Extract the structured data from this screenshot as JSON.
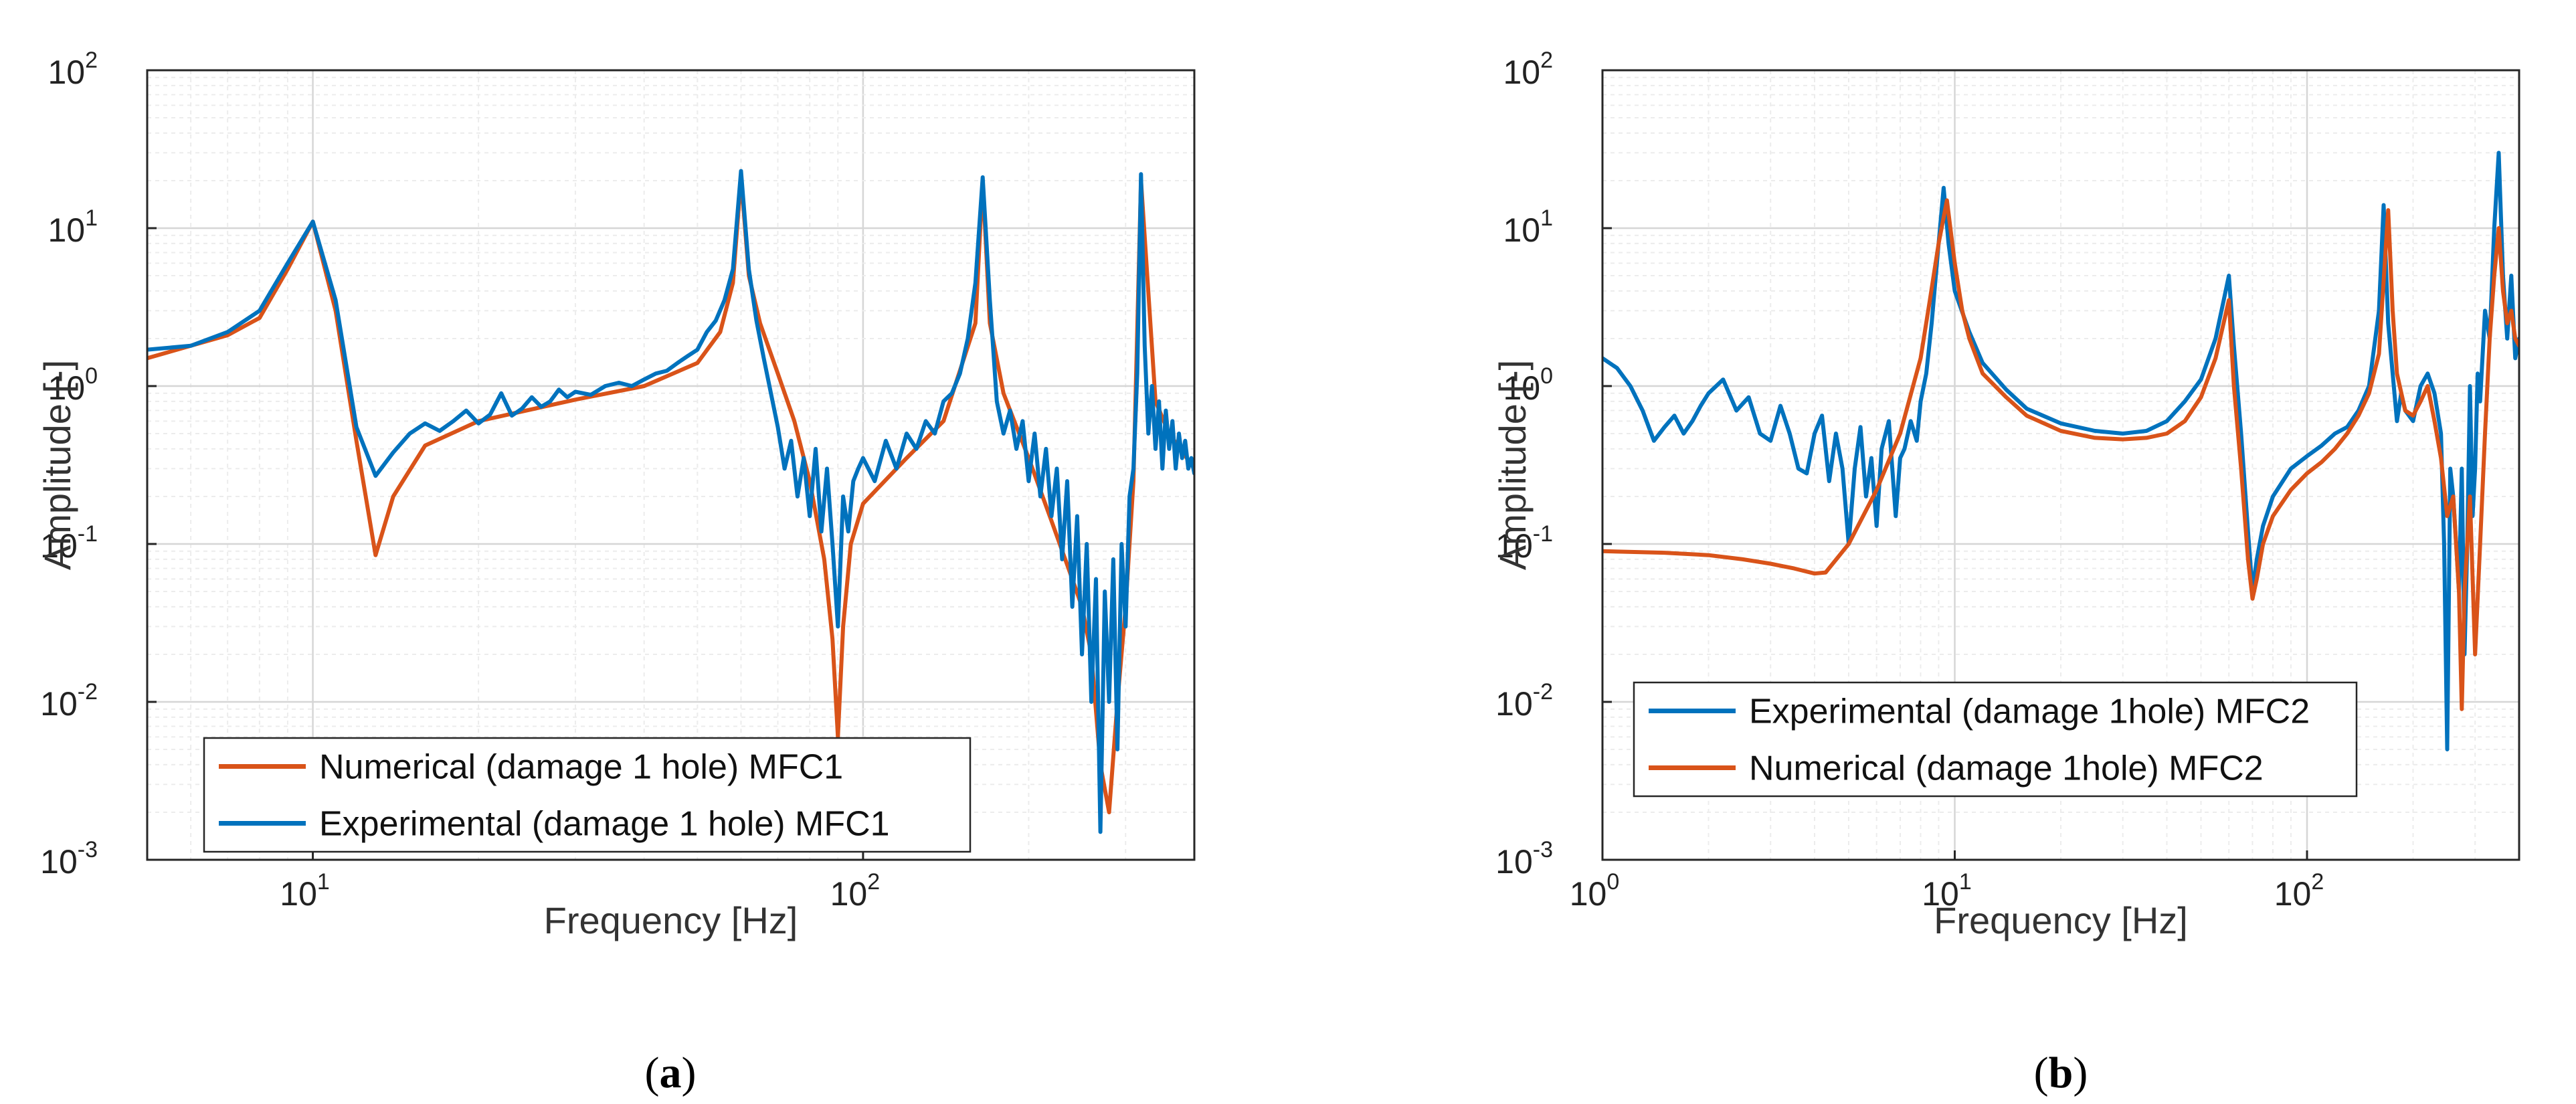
{
  "colors": {
    "numerical": "#d95319",
    "experimental": "#0072bd",
    "grid": "#d6d6d6",
    "grid_minor": "#ececec",
    "axis": "#262626"
  },
  "chart_data": [
    {
      "type": "line",
      "panel_label": "a",
      "xscale": "log",
      "yscale": "log",
      "xlim": [
        5,
        400
      ],
      "ylim": [
        0.001,
        100
      ],
      "xlabel": "Frequency [Hz]",
      "ylabel": "Amplitude [-]",
      "xticks": [
        {
          "base": "10",
          "exp": "1",
          "value": 10
        },
        {
          "base": "10",
          "exp": "2",
          "value": 100
        }
      ],
      "yticks": [
        {
          "base": "10",
          "exp": "-3",
          "value": 0.001
        },
        {
          "base": "10",
          "exp": "-2",
          "value": 0.01
        },
        {
          "base": "10",
          "exp": "-1",
          "value": 0.1
        },
        {
          "base": "10",
          "exp": "0",
          "value": 1
        },
        {
          "base": "10",
          "exp": "1",
          "value": 10
        },
        {
          "base": "10",
          "exp": "2",
          "value": 100
        }
      ],
      "grid": true,
      "legend_position": "bottom-left",
      "series": [
        {
          "name": "Numerical (damage 1 hole) MFC1",
          "color_key": "numerical",
          "x": [
            5,
            6,
            7,
            8,
            9,
            10,
            11,
            12,
            13,
            14,
            16,
            20,
            30,
            40,
            50,
            55,
            58,
            60,
            62,
            65,
            70,
            75,
            80,
            85,
            88,
            90,
            92,
            95,
            100,
            120,
            140,
            160,
            165,
            170,
            180,
            200,
            220,
            240,
            250,
            260,
            270,
            280,
            290,
            300,
            310,
            320,
            340,
            360,
            400
          ],
          "y": [
            1.5,
            1.8,
            2.1,
            2.7,
            5.5,
            11,
            3,
            0.45,
            0.085,
            0.2,
            0.42,
            0.6,
            0.82,
            1.0,
            1.4,
            2.2,
            4.5,
            21,
            5,
            2.5,
            1.2,
            0.6,
            0.25,
            0.08,
            0.025,
            0.006,
            0.03,
            0.1,
            0.18,
            0.35,
            0.6,
            2.5,
            20,
            2.5,
            0.9,
            0.35,
            0.14,
            0.06,
            0.04,
            0.02,
            0.004,
            0.002,
            0.01,
            0.04,
            0.25,
            20,
            0.8,
            0.5,
            0.3
          ]
        },
        {
          "name": "Experimental (damage 1 hole) MFC1",
          "color_key": "experimental",
          "x": [
            5,
            6,
            7,
            8,
            9,
            10,
            11,
            12,
            13,
            14,
            15,
            16,
            17,
            18,
            19,
            20,
            21,
            22,
            23,
            24,
            25,
            26,
            27,
            28,
            29,
            30,
            32,
            34,
            36,
            38,
            40,
            42,
            44,
            46,
            48,
            50,
            52,
            54,
            56,
            58,
            60,
            62,
            64,
            66,
            68,
            70,
            72,
            74,
            76,
            78,
            80,
            82,
            84,
            86,
            88,
            90,
            92,
            94,
            96,
            98,
            100,
            105,
            110,
            115,
            120,
            125,
            130,
            135,
            140,
            145,
            150,
            155,
            160,
            165,
            170,
            175,
            180,
            185,
            190,
            195,
            200,
            205,
            210,
            215,
            220,
            225,
            230,
            235,
            240,
            245,
            250,
            255,
            260,
            265,
            270,
            275,
            280,
            285,
            290,
            295,
            300,
            305,
            310,
            315,
            320,
            325,
            330,
            335,
            340,
            345,
            350,
            355,
            360,
            365,
            370,
            375,
            380,
            385,
            390,
            395,
            400
          ],
          "y": [
            1.7,
            1.8,
            2.2,
            3,
            6,
            11,
            3.5,
            0.55,
            0.27,
            0.38,
            0.5,
            0.58,
            0.52,
            0.6,
            0.7,
            0.58,
            0.66,
            0.9,
            0.65,
            0.72,
            0.85,
            0.74,
            0.8,
            0.95,
            0.85,
            0.92,
            0.88,
            1.0,
            1.05,
            1.0,
            1.1,
            1.2,
            1.25,
            1.4,
            1.55,
            1.7,
            2.2,
            2.6,
            3.5,
            5.5,
            23,
            5.5,
            2.6,
            1.5,
            0.9,
            0.55,
            0.3,
            0.45,
            0.2,
            0.35,
            0.15,
            0.4,
            0.12,
            0.3,
            0.1,
            0.03,
            0.2,
            0.12,
            0.25,
            0.3,
            0.35,
            0.25,
            0.45,
            0.3,
            0.5,
            0.4,
            0.6,
            0.5,
            0.8,
            0.9,
            1.2,
            2.0,
            4.5,
            21,
            3.5,
            0.8,
            0.5,
            0.7,
            0.4,
            0.6,
            0.25,
            0.5,
            0.2,
            0.4,
            0.15,
            0.3,
            0.08,
            0.25,
            0.04,
            0.15,
            0.02,
            0.1,
            0.01,
            0.06,
            0.0015,
            0.05,
            0.01,
            0.08,
            0.005,
            0.1,
            0.03,
            0.2,
            0.3,
            1.2,
            22,
            1.8,
            0.5,
            1.0,
            0.4,
            0.8,
            0.3,
            0.7,
            0.4,
            0.6,
            0.3,
            0.5,
            0.35,
            0.45,
            0.3,
            0.35,
            0.28
          ]
        }
      ]
    },
    {
      "type": "line",
      "panel_label": "b",
      "xscale": "log",
      "yscale": "log",
      "xlim": [
        1,
        400
      ],
      "ylim": [
        0.001,
        100
      ],
      "xlabel": "Frequency [Hz]",
      "ylabel": "Amplitude [-]",
      "xticks": [
        {
          "base": "10",
          "exp": "0",
          "value": 1
        },
        {
          "base": "10",
          "exp": "1",
          "value": 10
        },
        {
          "base": "10",
          "exp": "2",
          "value": 100
        }
      ],
      "yticks": [
        {
          "base": "10",
          "exp": "-3",
          "value": 0.001
        },
        {
          "base": "10",
          "exp": "-2",
          "value": 0.01
        },
        {
          "base": "10",
          "exp": "-1",
          "value": 0.1
        },
        {
          "base": "10",
          "exp": "0",
          "value": 1
        },
        {
          "base": "10",
          "exp": "1",
          "value": 10
        },
        {
          "base": "10",
          "exp": "2",
          "value": 100
        }
      ],
      "grid": true,
      "legend_position": "bottom-left",
      "series": [
        {
          "name": "Experimental (damage 1hole) MFC2",
          "color_key": "experimental",
          "x": [
            1,
            1.1,
            1.2,
            1.3,
            1.4,
            1.5,
            1.6,
            1.7,
            1.8,
            1.9,
            2.0,
            2.2,
            2.4,
            2.6,
            2.8,
            3.0,
            3.2,
            3.4,
            3.6,
            3.8,
            4.0,
            4.2,
            4.4,
            4.6,
            4.8,
            5.0,
            5.2,
            5.4,
            5.6,
            5.8,
            6.0,
            6.2,
            6.5,
            6.8,
            7.0,
            7.2,
            7.5,
            7.8,
            8.0,
            8.3,
            8.6,
            9.0,
            9.3,
            9.6,
            10,
            11,
            12,
            14,
            16,
            20,
            25,
            30,
            35,
            40,
            45,
            50,
            55,
            58,
            60,
            62,
            65,
            68,
            70,
            72,
            75,
            80,
            90,
            100,
            110,
            120,
            130,
            140,
            150,
            160,
            165,
            170,
            175,
            180,
            185,
            190,
            200,
            210,
            220,
            230,
            240,
            245,
            250,
            255,
            260,
            265,
            270,
            275,
            280,
            285,
            290,
            295,
            300,
            305,
            310,
            320,
            330,
            340,
            350,
            360,
            370,
            380,
            390,
            400
          ],
          "y": [
            1.5,
            1.3,
            1.0,
            0.7,
            0.45,
            0.55,
            0.65,
            0.5,
            0.6,
            0.75,
            0.9,
            1.1,
            0.7,
            0.85,
            0.5,
            0.45,
            0.75,
            0.5,
            0.3,
            0.28,
            0.5,
            0.65,
            0.25,
            0.5,
            0.3,
            0.1,
            0.3,
            0.55,
            0.2,
            0.35,
            0.13,
            0.4,
            0.6,
            0.15,
            0.35,
            0.4,
            0.6,
            0.45,
            0.8,
            1.2,
            2.5,
            8,
            18,
            8,
            4,
            2.2,
            1.4,
            0.95,
            0.72,
            0.58,
            0.52,
            0.5,
            0.52,
            0.6,
            0.8,
            1.1,
            2.0,
            3.5,
            5,
            1.8,
            0.5,
            0.12,
            0.05,
            0.08,
            0.13,
            0.2,
            0.3,
            0.36,
            0.42,
            0.5,
            0.55,
            0.7,
            1.0,
            3.0,
            14,
            2.5,
            1.2,
            0.6,
            0.9,
            0.7,
            0.6,
            1.0,
            1.2,
            0.9,
            0.5,
            0.1,
            0.005,
            0.3,
            0.2,
            0.1,
            0.05,
            0.3,
            0.02,
            0.1,
            1.0,
            0.15,
            0.3,
            1.2,
            0.8,
            3.0,
            2.0,
            10,
            30,
            5,
            2.0,
            5.0,
            1.5,
            2.0
          ]
        },
        {
          "name": "Numerical (damage 1hole) MFC2",
          "color_key": "numerical",
          "x": [
            1,
            1.5,
            2,
            2.5,
            3,
            3.5,
            4,
            4.3,
            5,
            6,
            7,
            8,
            8.5,
            9,
            9.5,
            10,
            10.5,
            11,
            12,
            14,
            16,
            20,
            25,
            30,
            35,
            40,
            45,
            50,
            55,
            60,
            62,
            65,
            68,
            70,
            72,
            75,
            80,
            90,
            100,
            110,
            120,
            130,
            140,
            150,
            160,
            170,
            175,
            180,
            190,
            200,
            210,
            220,
            230,
            240,
            250,
            260,
            270,
            275,
            280,
            290,
            300,
            310,
            320,
            330,
            340,
            350,
            360,
            370,
            380,
            390,
            400
          ],
          "y": [
            0.09,
            0.088,
            0.085,
            0.08,
            0.075,
            0.07,
            0.065,
            0.066,
            0.1,
            0.22,
            0.5,
            1.5,
            3.5,
            8,
            15,
            6,
            3,
            2,
            1.2,
            0.85,
            0.65,
            0.52,
            0.47,
            0.46,
            0.47,
            0.5,
            0.6,
            0.85,
            1.5,
            3.5,
            1.0,
            0.3,
            0.08,
            0.045,
            0.06,
            0.1,
            0.15,
            0.22,
            0.28,
            0.33,
            0.4,
            0.5,
            0.65,
            0.9,
            1.6,
            13,
            3,
            1.2,
            0.7,
            0.65,
            0.8,
            1.0,
            0.6,
            0.35,
            0.15,
            0.2,
            0.05,
            0.009,
            0.05,
            0.2,
            0.02,
            0.1,
            0.5,
            2.0,
            5.0,
            10,
            4.0,
            2.5,
            3.0,
            2.0,
            1.8
          ]
        }
      ]
    }
  ]
}
